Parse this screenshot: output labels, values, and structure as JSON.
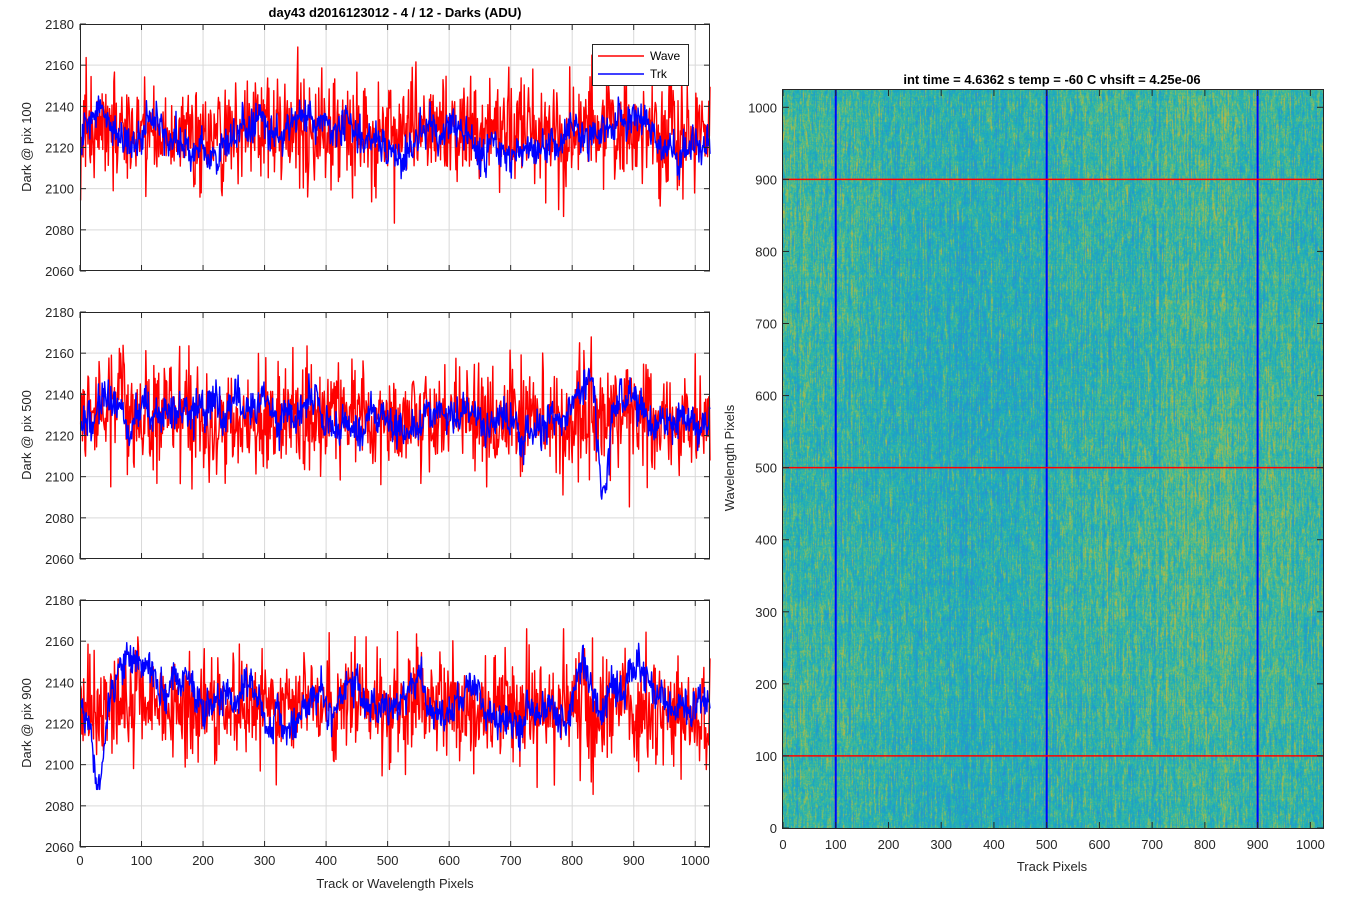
{
  "figure": {
    "background": "#ffffff",
    "axis_color": "#262626",
    "grid_color": "#d9d9d9"
  },
  "chart_data": [
    {
      "type": "line",
      "title": "day43 d2016123012 - 4 / 12 - Darks (ADU)",
      "ylabel": "Dark @ pix 100",
      "xlabel": "",
      "xlim": [
        0,
        1024
      ],
      "ylim": [
        2060,
        2180
      ],
      "xticks": [
        0,
        100,
        200,
        300,
        400,
        500,
        600,
        700,
        800,
        900,
        1000
      ],
      "yticks": [
        2060,
        2080,
        2100,
        2120,
        2140,
        2160,
        2180
      ],
      "xtick_labels_visible": false,
      "grid": true,
      "legend": {
        "position": "top-right",
        "entries": [
          "Wave",
          "Trk"
        ]
      },
      "series": [
        {
          "name": "Wave",
          "color": "#ff0000",
          "mean": 2128,
          "noise_sd": 13,
          "slow_amp": 3,
          "x_min": 1,
          "x_max": 1024,
          "y_min": 2076,
          "y_max": 2176
        },
        {
          "name": "Trk",
          "color": "#0000ff",
          "mean": 2127,
          "noise_sd": 4,
          "slow_amp": 9,
          "x_min": 1,
          "x_max": 1024,
          "y_min": 2099,
          "y_max": 2156
        }
      ]
    },
    {
      "type": "line",
      "title": "",
      "ylabel": "Dark @ pix 500",
      "xlabel": "",
      "xlim": [
        0,
        1024
      ],
      "ylim": [
        2060,
        2180
      ],
      "xticks": [
        0,
        100,
        200,
        300,
        400,
        500,
        600,
        700,
        800,
        900,
        1000
      ],
      "yticks": [
        2060,
        2080,
        2100,
        2120,
        2140,
        2160,
        2180
      ],
      "xtick_labels_visible": false,
      "grid": true,
      "series": [
        {
          "name": "Wave",
          "color": "#ff0000",
          "mean": 2128,
          "noise_sd": 13,
          "slow_amp": 3,
          "x_min": 1,
          "x_max": 1024,
          "y_min": 2070,
          "y_max": 2174
        },
        {
          "name": "Trk",
          "color": "#0000ff",
          "mean": 2128,
          "noise_sd": 4,
          "slow_amp": 11,
          "x_min": 1,
          "x_max": 1024,
          "y_min": 2080,
          "y_max": 2159,
          "dip": {
            "x": 850,
            "depth": 40,
            "width": 12
          }
        }
      ]
    },
    {
      "type": "line",
      "title": "",
      "ylabel": "Dark @ pix 900",
      "xlabel": "Track or Wavelength Pixels",
      "xlim": [
        0,
        1024
      ],
      "ylim": [
        2060,
        2180
      ],
      "xticks": [
        0,
        100,
        200,
        300,
        400,
        500,
        600,
        700,
        800,
        900,
        1000
      ],
      "yticks": [
        2060,
        2080,
        2100,
        2120,
        2140,
        2160,
        2180
      ],
      "xtick_labels_visible": true,
      "grid": true,
      "series": [
        {
          "name": "Wave",
          "color": "#ff0000",
          "mean": 2128,
          "noise_sd": 13,
          "slow_amp": 3,
          "x_min": 1,
          "x_max": 1024,
          "y_min": 2073,
          "y_max": 2166
        },
        {
          "name": "Trk",
          "color": "#0000ff",
          "mean": 2133,
          "noise_sd": 4,
          "slow_amp": 12,
          "x_min": 1,
          "x_max": 1024,
          "y_min": 2088,
          "y_max": 2170,
          "dip": {
            "x": 30,
            "depth": 35,
            "width": 12
          }
        }
      ]
    },
    {
      "type": "heatmap",
      "title": "int time = 4.6362 s    temp = -60 C    vhsift = 4.25e-06",
      "xlabel": "Track Pixels",
      "ylabel": "Wavelength Pixels",
      "xlim": [
        0,
        1024
      ],
      "ylim": [
        0,
        1024
      ],
      "xticks": [
        0,
        100,
        200,
        300,
        400,
        500,
        600,
        700,
        800,
        900,
        1000
      ],
      "yticks": [
        0,
        100,
        200,
        300,
        400,
        500,
        600,
        700,
        800,
        900,
        1000
      ],
      "colormap": [
        "#2c8fd0",
        "#18a9c4",
        "#37b89e",
        "#86bd62",
        "#c5b53d"
      ],
      "color_bias": 0.45,
      "vertical_lines": {
        "x": [
          100,
          500,
          900
        ],
        "color": "#0000ff"
      },
      "horizontal_lines": {
        "y": [
          100,
          500,
          900
        ],
        "color": "#ff0000"
      }
    }
  ]
}
